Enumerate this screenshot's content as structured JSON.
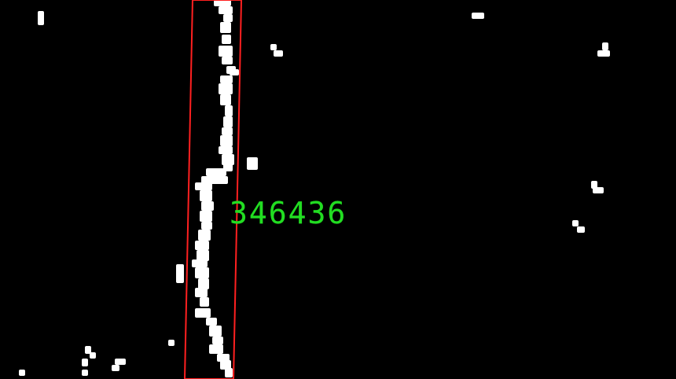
{
  "detection": {
    "label": "346436",
    "label_color": "#22dd22",
    "box_color": "#ff2020"
  },
  "colors": {
    "background": "#000000",
    "foreground": "#ffffff"
  }
}
